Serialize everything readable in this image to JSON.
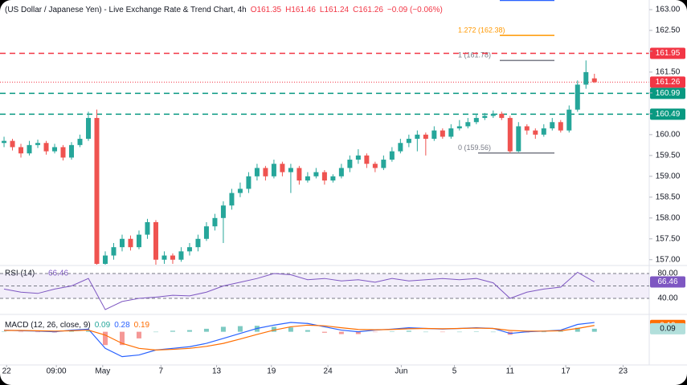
{
  "header": {
    "title": "(US Dollar / Japanese Yen) - Live Exchange Rate & Trend Chart, 4h",
    "ohlc": [
      "O161.35",
      "H161.46",
      "L161.24",
      "C161.26"
    ],
    "change": "−0.09 (−0.06%)"
  },
  "chart_data": {
    "type": "candlestick",
    "up_color": "#26a69a",
    "down_color": "#ef5350",
    "candles": [
      [
        159.8,
        159.95,
        159.7,
        159.85
      ],
      [
        159.85,
        159.9,
        159.62,
        159.7
      ],
      [
        159.7,
        159.78,
        159.45,
        159.55
      ],
      [
        159.55,
        159.85,
        159.5,
        159.75
      ],
      [
        159.75,
        159.88,
        159.68,
        159.8
      ],
      [
        159.8,
        159.85,
        159.52,
        159.6
      ],
      [
        159.6,
        159.78,
        159.55,
        159.7
      ],
      [
        159.7,
        159.75,
        159.38,
        159.45
      ],
      [
        159.45,
        159.82,
        159.4,
        159.75
      ],
      [
        159.75,
        160.0,
        159.7,
        159.9
      ],
      [
        159.9,
        160.55,
        159.85,
        160.4
      ],
      [
        160.4,
        160.6,
        156.88,
        156.9
      ],
      [
        156.9,
        157.2,
        156.88,
        157.1
      ],
      [
        157.1,
        157.4,
        157.0,
        157.3
      ],
      [
        157.3,
        157.6,
        157.2,
        157.5
      ],
      [
        157.5,
        157.58,
        157.22,
        157.3
      ],
      [
        157.3,
        157.7,
        157.25,
        157.6
      ],
      [
        157.6,
        157.98,
        157.5,
        157.9
      ],
      [
        157.9,
        157.95,
        156.88,
        157.0
      ],
      [
        157.0,
        157.2,
        156.9,
        157.1
      ],
      [
        157.1,
        157.15,
        156.9,
        157.0
      ],
      [
        157.0,
        157.3,
        156.95,
        157.2
      ],
      [
        157.2,
        157.4,
        157.1,
        157.3
      ],
      [
        157.3,
        157.6,
        157.2,
        157.5
      ],
      [
        157.5,
        157.9,
        157.45,
        157.8
      ],
      [
        157.8,
        158.1,
        157.7,
        158.0
      ],
      [
        158.0,
        158.4,
        157.4,
        158.3
      ],
      [
        158.3,
        158.7,
        158.2,
        158.6
      ],
      [
        158.6,
        158.85,
        158.5,
        158.7
      ],
      [
        158.7,
        159.1,
        158.6,
        159.0
      ],
      [
        159.0,
        159.3,
        158.9,
        159.2
      ],
      [
        159.2,
        159.25,
        158.9,
        159.0
      ],
      [
        159.0,
        159.4,
        158.95,
        159.3
      ],
      [
        159.3,
        159.35,
        159.0,
        159.1
      ],
      [
        159.1,
        159.3,
        158.6,
        159.2
      ],
      [
        159.2,
        159.25,
        158.8,
        158.9
      ],
      [
        158.9,
        159.1,
        158.85,
        159.0
      ],
      [
        159.0,
        159.2,
        158.95,
        159.1
      ],
      [
        159.1,
        159.15,
        158.8,
        158.9
      ],
      [
        158.9,
        159.05,
        158.85,
        159.0
      ],
      [
        159.0,
        159.3,
        158.95,
        159.2
      ],
      [
        159.2,
        159.5,
        159.1,
        159.4
      ],
      [
        159.4,
        159.65,
        159.3,
        159.5
      ],
      [
        159.5,
        159.55,
        159.2,
        159.3
      ],
      [
        159.3,
        159.35,
        159.1,
        159.2
      ],
      [
        159.2,
        159.5,
        159.15,
        159.4
      ],
      [
        159.4,
        159.7,
        159.35,
        159.6
      ],
      [
        159.6,
        159.9,
        159.55,
        159.8
      ],
      [
        159.8,
        160.0,
        159.7,
        159.9
      ],
      [
        159.9,
        160.1,
        159.6,
        160.0
      ],
      [
        160.0,
        160.05,
        159.5,
        159.9
      ],
      [
        159.9,
        160.2,
        159.85,
        160.1
      ],
      [
        160.1,
        160.15,
        159.9,
        159.95
      ],
      [
        159.95,
        160.25,
        159.9,
        160.15
      ],
      [
        160.15,
        160.35,
        160.1,
        160.2
      ],
      [
        160.2,
        160.4,
        160.15,
        160.3
      ],
      [
        160.3,
        160.5,
        160.25,
        160.4
      ],
      [
        160.4,
        160.52,
        160.35,
        160.45
      ],
      [
        160.45,
        160.58,
        160.4,
        160.5
      ],
      [
        160.5,
        160.55,
        160.35,
        160.4
      ],
      [
        160.4,
        160.45,
        159.56,
        159.6
      ],
      [
        159.6,
        160.3,
        159.58,
        160.2
      ],
      [
        160.2,
        160.25,
        160.0,
        160.1
      ],
      [
        160.1,
        160.15,
        159.9,
        160.0
      ],
      [
        160.0,
        160.25,
        159.95,
        160.15
      ],
      [
        160.15,
        160.4,
        160.1,
        160.3
      ],
      [
        160.3,
        160.35,
        160.05,
        160.1
      ],
      [
        160.1,
        160.7,
        160.05,
        160.6
      ],
      [
        160.6,
        161.3,
        160.55,
        161.2
      ],
      [
        161.2,
        161.78,
        161.1,
        161.5
      ],
      [
        161.35,
        161.46,
        161.24,
        161.26
      ]
    ],
    "xlim": [
      -0.48,
      76.5
    ],
    "xticks": [
      {
        "value": 0.3,
        "label": "22"
      },
      {
        "value": 6.2,
        "label": "09:00"
      },
      {
        "value": 11.7,
        "label": "May"
      },
      {
        "value": 18.6,
        "label": "7"
      },
      {
        "value": 25.2,
        "label": "13"
      },
      {
        "value": 31.7,
        "label": "19"
      },
      {
        "value": 38.4,
        "label": "24"
      },
      {
        "value": 47.1,
        "label": "Jun"
      },
      {
        "value": 53.4,
        "label": "5"
      },
      {
        "value": 60,
        "label": "11"
      },
      {
        "value": 66.6,
        "label": "17"
      },
      {
        "value": 73.4,
        "label": "23"
      }
    ],
    "ylim": [
      156.88,
      163.23
    ],
    "yticks": [
      {
        "value": 163,
        "label": "163.00"
      },
      {
        "value": 162.5,
        "label": "162.50"
      },
      {
        "value": 162,
        "label": "162.00"
      },
      {
        "value": 161.5,
        "label": "161.50"
      },
      {
        "value": 161,
        "label": "161.00"
      },
      {
        "value": 160.5,
        "label": "160.50"
      },
      {
        "value": 160,
        "label": "160.00"
      },
      {
        "value": 159.5,
        "label": "159.50"
      },
      {
        "value": 159,
        "label": "159.00"
      },
      {
        "value": 158.5,
        "label": "158.50"
      },
      {
        "value": 158,
        "label": "158.00"
      },
      {
        "value": 157.5,
        "label": "157.50"
      },
      {
        "value": 157,
        "label": "157.00"
      }
    ],
    "levels": [
      {
        "value": 161.95,
        "label": "161.95",
        "color": "#f23645"
      },
      {
        "value": 160.99,
        "label": "160.99",
        "color": "#089981"
      },
      {
        "value": 160.49,
        "label": "160.49",
        "color": "#089981"
      }
    ],
    "last_price": {
      "value": 161.26,
      "label": "161.26",
      "color": "#f23645"
    },
    "fib": [
      {
        "value": 163.22,
        "color": "#2962ff"
      },
      {
        "value": 162.38,
        "label": "1.272 (162.38)",
        "color": "#ff9800"
      },
      {
        "value": 161.78,
        "label": "1 (161.78)",
        "color": "#787b86"
      },
      {
        "value": 159.56,
        "label": "0 (159.56)",
        "color": "#787b86"
      }
    ],
    "rsi": {
      "label": "RSI (14)",
      "color": "#7e57c2",
      "ylim": [
        16.8,
        90.3
      ],
      "values": [
        55,
        50,
        48,
        55,
        60,
        72,
        22,
        35,
        40,
        42,
        45,
        44,
        50,
        60,
        66,
        72,
        80,
        78,
        70,
        72,
        68,
        70,
        66,
        72,
        68,
        70,
        72,
        70,
        72,
        65,
        40,
        50,
        55,
        58,
        82,
        66.46
      ],
      "yticks": [
        {
          "value": 80,
          "label": "80.00"
        },
        {
          "value": 40,
          "label": "40.00"
        }
      ],
      "last": {
        "value": 66.46,
        "label": "66.46"
      }
    },
    "macd": {
      "label": "MACD (12, 26, close, 9)",
      "ylim": [
        -1,
        0.45
      ],
      "macd": {
        "color": "#2962ff",
        "values": [
          0.05,
          0.03,
          0.02,
          0.0,
          0.05,
          0.08,
          -0.5,
          -0.75,
          -0.7,
          -0.55,
          -0.5,
          -0.45,
          -0.35,
          -0.2,
          -0.05,
          0.1,
          0.2,
          0.28,
          0.25,
          0.15,
          0.05,
          0.0,
          0.05,
          0.08,
          0.12,
          0.1,
          0.08,
          0.1,
          0.12,
          0.1,
          -0.05,
          0.0,
          0.02,
          0.05,
          0.22,
          0.28
        ]
      },
      "signal": {
        "color": "#ff6d00",
        "values": [
          0.04,
          0.04,
          0.03,
          0.02,
          0.03,
          0.05,
          -0.1,
          -0.35,
          -0.5,
          -0.55,
          -0.53,
          -0.5,
          -0.44,
          -0.35,
          -0.22,
          -0.08,
          0.05,
          0.15,
          0.2,
          0.18,
          0.12,
          0.07,
          0.06,
          0.07,
          0.09,
          0.1,
          0.09,
          0.1,
          0.11,
          0.1,
          0.04,
          0.02,
          0.02,
          0.03,
          0.1,
          0.19
        ]
      },
      "histogram": {
        "up_color": "#26a69a",
        "down_color": "#ef5350",
        "values": [
          0.01,
          -0.01,
          -0.01,
          -0.02,
          0.02,
          0.03,
          -0.4,
          -0.4,
          -0.2,
          0.0,
          0.03,
          0.05,
          0.09,
          0.15,
          0.17,
          0.18,
          0.15,
          0.13,
          0.05,
          -0.03,
          -0.07,
          -0.07,
          -0.01,
          0.01,
          0.03,
          0,
          -0.01,
          0,
          0.01,
          0,
          -0.09,
          -0.02,
          0,
          0.02,
          0.12,
          0.09
        ]
      }
    }
  }
}
